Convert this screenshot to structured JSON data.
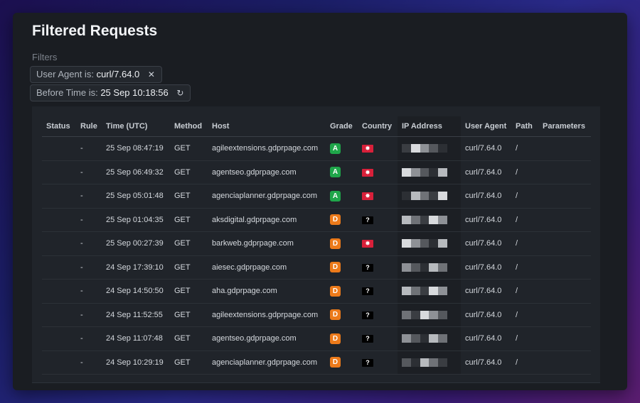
{
  "page": {
    "title": "Filtered Requests"
  },
  "filters": {
    "label": "Filters",
    "chips": [
      {
        "key": "User Agent is:",
        "value": "curl/7.64.0",
        "action_icon": "close-icon"
      },
      {
        "key": "Before Time is:",
        "value": "25 Sep 10:18:56",
        "action_icon": "refresh-icon"
      }
    ]
  },
  "table": {
    "columns": [
      "Status",
      "Rule",
      "Time (UTC)",
      "Method",
      "Host",
      "Grade",
      "Country",
      "IP Address",
      "User Agent",
      "Path",
      "Parameters"
    ],
    "rows": [
      {
        "status": "",
        "rule": "-",
        "time": "25 Sep 08:47:19",
        "method": "GET",
        "host": "agileextensions.gdprpage.com",
        "grade": "A",
        "country": "hk",
        "country_glyph": "✸",
        "ip": "[redacted]",
        "user_agent": "curl/7.64.0",
        "path": "/",
        "parameters": ""
      },
      {
        "status": "",
        "rule": "-",
        "time": "25 Sep 06:49:32",
        "method": "GET",
        "host": "agentseo.gdprpage.com",
        "grade": "A",
        "country": "hk",
        "country_glyph": "✸",
        "ip": "[redacted]",
        "user_agent": "curl/7.64.0",
        "path": "/",
        "parameters": ""
      },
      {
        "status": "",
        "rule": "-",
        "time": "25 Sep 05:01:48",
        "method": "GET",
        "host": "agenciaplanner.gdprpage.com",
        "grade": "A",
        "country": "hk",
        "country_glyph": "✸",
        "ip": "[redacted]",
        "user_agent": "curl/7.64.0",
        "path": "/",
        "parameters": ""
      },
      {
        "status": "",
        "rule": "-",
        "time": "25 Sep 01:04:35",
        "method": "GET",
        "host": "aksdigital.gdprpage.com",
        "grade": "D",
        "country": "unknown",
        "country_glyph": "?",
        "ip": "[redacted]",
        "user_agent": "curl/7.64.0",
        "path": "/",
        "parameters": ""
      },
      {
        "status": "",
        "rule": "-",
        "time": "25 Sep 00:27:39",
        "method": "GET",
        "host": "barkweb.gdprpage.com",
        "grade": "D",
        "country": "hk",
        "country_glyph": "✸",
        "ip": "[redacted]",
        "user_agent": "curl/7.64.0",
        "path": "/",
        "parameters": ""
      },
      {
        "status": "",
        "rule": "-",
        "time": "24 Sep 17:39:10",
        "method": "GET",
        "host": "aiesec.gdprpage.com",
        "grade": "D",
        "country": "unknown",
        "country_glyph": "?",
        "ip": "[redacted]",
        "user_agent": "curl/7.64.0",
        "path": "/",
        "parameters": ""
      },
      {
        "status": "",
        "rule": "-",
        "time": "24 Sep 14:50:50",
        "method": "GET",
        "host": "aha.gdprpage.com",
        "grade": "D",
        "country": "unknown",
        "country_glyph": "?",
        "ip": "[redacted]",
        "user_agent": "curl/7.64.0",
        "path": "/",
        "parameters": ""
      },
      {
        "status": "",
        "rule": "-",
        "time": "24 Sep 11:52:55",
        "method": "GET",
        "host": "agileextensions.gdprpage.com",
        "grade": "D",
        "country": "unknown",
        "country_glyph": "?",
        "ip": "[redacted]",
        "user_agent": "curl/7.64.0",
        "path": "/",
        "parameters": ""
      },
      {
        "status": "",
        "rule": "-",
        "time": "24 Sep 11:07:48",
        "method": "GET",
        "host": "agentseo.gdprpage.com",
        "grade": "D",
        "country": "unknown",
        "country_glyph": "?",
        "ip": "[redacted]",
        "user_agent": "curl/7.64.0",
        "path": "/",
        "parameters": ""
      },
      {
        "status": "",
        "rule": "-",
        "time": "24 Sep 10:29:19",
        "method": "GET",
        "host": "agenciaplanner.gdprpage.com",
        "grade": "D",
        "country": "unknown",
        "country_glyph": "?",
        "ip": "[redacted]",
        "user_agent": "curl/7.64.0",
        "path": "/",
        "parameters": ""
      }
    ]
  },
  "colors": {
    "grade_A": "#1fa64a",
    "grade_D": "#ec7a1a",
    "flag_hk": "#d8203a",
    "panel_bg": "#1a1d22"
  }
}
